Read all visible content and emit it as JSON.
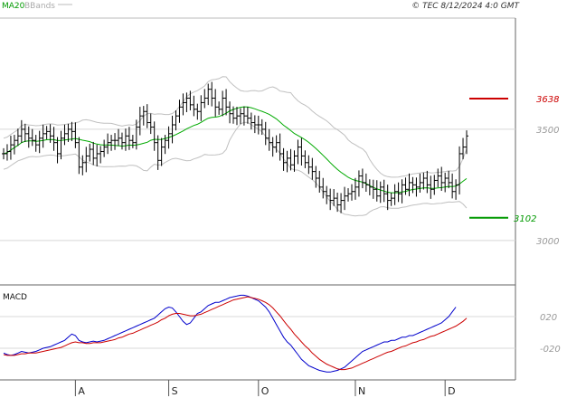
{
  "header": {
    "indicator_ma": "MA20",
    "indicator_bbands": "BBands",
    "copyright": "© TEC 8/12/2024 4:0 GMT"
  },
  "colors": {
    "ma": "#00aa00",
    "bbands": "#c0c0c0",
    "price": "#000000",
    "resistance": "#cc0000",
    "support": "#009900",
    "macd": "#0000cc",
    "signal": "#cc0000",
    "grid": "#d8d8d8",
    "frame": "#666666"
  },
  "chart_data": [
    {
      "type": "ohlc",
      "title": "",
      "indicators": [
        "MA20",
        "BBands"
      ],
      "y_ticks": [
        "3500",
        "3000"
      ],
      "y_tick_values": [
        3500,
        3000
      ],
      "ylim": [
        2800,
        4000
      ],
      "x_ticks": [
        "A",
        "S",
        "O",
        "N",
        "D"
      ],
      "x_tick_index": [
        20,
        46,
        71,
        98,
        123
      ],
      "levels": [
        {
          "name": "resistance",
          "value": 3638,
          "label": "3638"
        },
        {
          "name": "support",
          "value": 3102,
          "label": "3102"
        }
      ],
      "close": [
        3390,
        3400,
        3430,
        3450,
        3470,
        3500,
        3480,
        3460,
        3450,
        3430,
        3460,
        3480,
        3490,
        3470,
        3440,
        3390,
        3460,
        3480,
        3500,
        3490,
        3440,
        3330,
        3350,
        3380,
        3410,
        3370,
        3390,
        3400,
        3420,
        3440,
        3450,
        3450,
        3460,
        3440,
        3470,
        3450,
        3440,
        3510,
        3560,
        3580,
        3530,
        3510,
        3440,
        3360,
        3420,
        3450,
        3480,
        3520,
        3560,
        3600,
        3620,
        3640,
        3610,
        3590,
        3580,
        3620,
        3640,
        3680,
        3640,
        3600,
        3590,
        3640,
        3600,
        3570,
        3550,
        3560,
        3570,
        3560,
        3550,
        3530,
        3520,
        3520,
        3500,
        3460,
        3440,
        3420,
        3440,
        3390,
        3350,
        3370,
        3340,
        3380,
        3420,
        3380,
        3350,
        3330,
        3310,
        3280,
        3240,
        3220,
        3200,
        3180,
        3190,
        3160,
        3180,
        3200,
        3210,
        3220,
        3240,
        3290,
        3260,
        3250,
        3240,
        3230,
        3200,
        3240,
        3210,
        3180,
        3190,
        3220,
        3210,
        3250,
        3230,
        3260,
        3250,
        3240,
        3260,
        3280,
        3250,
        3230,
        3270,
        3290,
        3260,
        3280,
        3260,
        3220,
        3250,
        3390,
        3420,
        3470
      ]
    },
    {
      "type": "macd",
      "label": "MACD",
      "y_ticks": [
        "020",
        "-020"
      ],
      "y_tick_values": [
        20,
        -20
      ],
      "ylim": [
        -60,
        60
      ],
      "macd": [
        -26,
        -28,
        -29,
        -28,
        -26,
        -24,
        -25,
        -26,
        -25,
        -24,
        -22,
        -20,
        -19,
        -18,
        -16,
        -14,
        -12,
        -10,
        -6,
        -2,
        -4,
        -10,
        -12,
        -13,
        -12,
        -11,
        -12,
        -11,
        -10,
        -8,
        -6,
        -4,
        -2,
        0,
        2,
        4,
        6,
        8,
        10,
        12,
        14,
        16,
        18,
        22,
        26,
        30,
        32,
        31,
        26,
        20,
        14,
        10,
        12,
        18,
        24,
        26,
        30,
        34,
        36,
        38,
        38,
        40,
        42,
        44,
        45,
        46,
        47,
        47,
        46,
        44,
        42,
        40,
        36,
        32,
        26,
        18,
        10,
        2,
        -6,
        -12,
        -16,
        -22,
        -28,
        -34,
        -38,
        -42,
        -44,
        -46,
        -48,
        -49,
        -50,
        -50,
        -49,
        -48,
        -46,
        -44,
        -40,
        -36,
        -32,
        -28,
        -24,
        -22,
        -20,
        -18,
        -16,
        -14,
        -12,
        -12,
        -10,
        -10,
        -8,
        -6,
        -6,
        -4,
        -4,
        -2,
        0,
        2,
        4,
        6,
        8,
        10,
        12,
        16,
        20,
        26,
        32
      ],
      "signal": [
        -28,
        -29,
        -29,
        -29,
        -28,
        -27,
        -27,
        -26,
        -26,
        -26,
        -25,
        -24,
        -23,
        -22,
        -21,
        -20,
        -19,
        -17,
        -15,
        -13,
        -12,
        -13,
        -13,
        -14,
        -14,
        -13,
        -13,
        -13,
        -12,
        -11,
        -10,
        -9,
        -7,
        -6,
        -4,
        -2,
        -1,
        1,
        3,
        5,
        7,
        9,
        11,
        13,
        16,
        18,
        21,
        23,
        24,
        24,
        23,
        22,
        21,
        21,
        22,
        23,
        25,
        27,
        29,
        31,
        33,
        35,
        37,
        39,
        41,
        42,
        43,
        44,
        45,
        44,
        43,
        42,
        40,
        38,
        35,
        31,
        26,
        21,
        15,
        9,
        4,
        -2,
        -7,
        -12,
        -17,
        -21,
        -26,
        -30,
        -34,
        -37,
        -40,
        -42,
        -44,
        -46,
        -47,
        -47,
        -46,
        -45,
        -43,
        -41,
        -39,
        -37,
        -35,
        -33,
        -31,
        -29,
        -27,
        -25,
        -24,
        -22,
        -20,
        -18,
        -17,
        -15,
        -13,
        -12,
        -10,
        -9,
        -7,
        -5,
        -4,
        -2,
        0,
        2,
        4,
        6,
        8,
        11,
        14,
        18
      ]
    }
  ]
}
